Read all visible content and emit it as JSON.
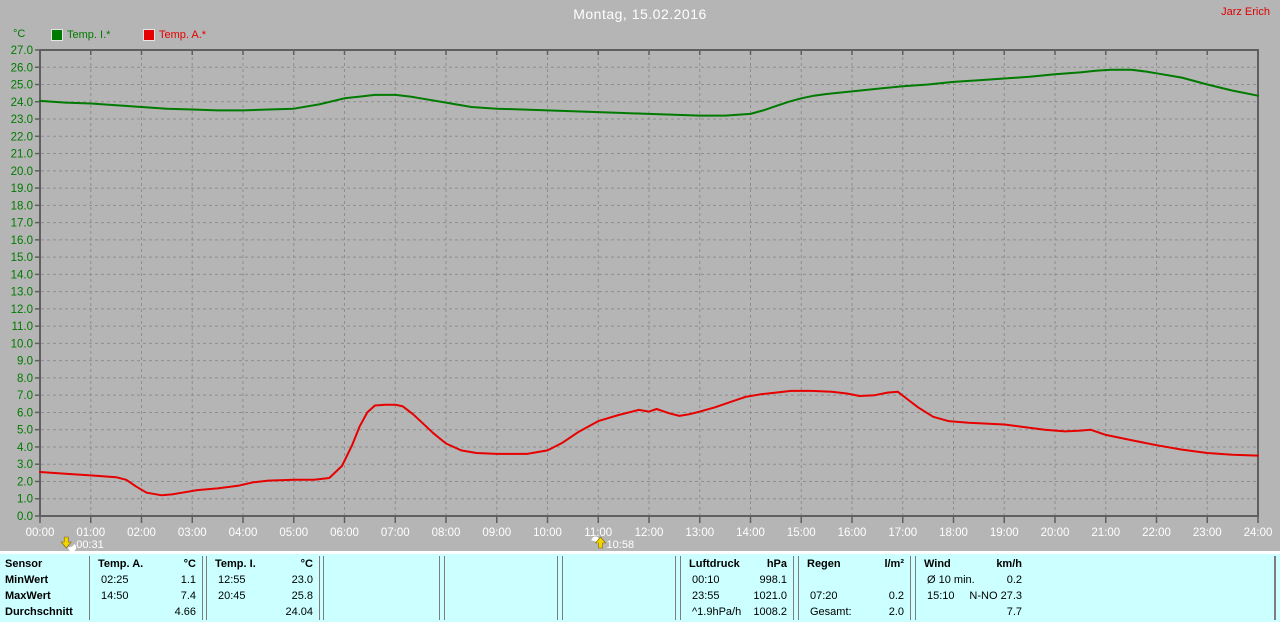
{
  "header": {
    "title": "Montag, 15.02.2016",
    "user": "Jarz Erich"
  },
  "legend": {
    "axis_unit": "°C",
    "items": [
      {
        "label": "Temp. I.*",
        "color": "#007a00"
      },
      {
        "label": "Temp. A.*",
        "color": "#e60000"
      }
    ]
  },
  "colors": {
    "background": "#b5b5b5",
    "grid": "#8e8e8e",
    "frame": "#5f5f5f",
    "y_axis_text": "#007a00",
    "x_axis_text": "#ffffff",
    "title_text": "#ffffff",
    "author_text": "#dd0000",
    "table_background": "#ccffff",
    "table_line": "#7d7d7d"
  },
  "chart_data": {
    "type": "line",
    "title": "Montag, 15.02.2016",
    "ylabel": "°C",
    "grid": true,
    "y_axis": {
      "min": 0.0,
      "max": 27.0,
      "step": 1.0
    },
    "x_axis": {
      "min_hour": 0,
      "max_hour": 24,
      "step_hours": 1
    },
    "series": [
      {
        "name": "Temp. I.*",
        "color": "#007a00",
        "points": [
          [
            0,
            24.05
          ],
          [
            0.5,
            23.95
          ],
          [
            1.0,
            23.9
          ],
          [
            1.5,
            23.8
          ],
          [
            2.0,
            23.7
          ],
          [
            2.5,
            23.6
          ],
          [
            3.0,
            23.55
          ],
          [
            3.5,
            23.5
          ],
          [
            4.0,
            23.5
          ],
          [
            4.5,
            23.55
          ],
          [
            5.0,
            23.6
          ],
          [
            5.5,
            23.85
          ],
          [
            6.0,
            24.2
          ],
          [
            6.3,
            24.3
          ],
          [
            6.6,
            24.4
          ],
          [
            7.0,
            24.4
          ],
          [
            7.3,
            24.3
          ],
          [
            7.6,
            24.15
          ],
          [
            8.0,
            23.95
          ],
          [
            8.5,
            23.7
          ],
          [
            9.0,
            23.6
          ],
          [
            9.5,
            23.55
          ],
          [
            10.0,
            23.5
          ],
          [
            10.5,
            23.45
          ],
          [
            11.0,
            23.4
          ],
          [
            11.5,
            23.35
          ],
          [
            12.0,
            23.3
          ],
          [
            12.5,
            23.25
          ],
          [
            13.0,
            23.2
          ],
          [
            13.5,
            23.2
          ],
          [
            14.0,
            23.3
          ],
          [
            14.25,
            23.5
          ],
          [
            14.5,
            23.75
          ],
          [
            14.75,
            24.0
          ],
          [
            15.0,
            24.2
          ],
          [
            15.25,
            24.35
          ],
          [
            15.5,
            24.45
          ],
          [
            16.0,
            24.6
          ],
          [
            16.5,
            24.75
          ],
          [
            17.0,
            24.9
          ],
          [
            17.5,
            25.0
          ],
          [
            18.0,
            25.15
          ],
          [
            18.5,
            25.25
          ],
          [
            19.0,
            25.35
          ],
          [
            19.5,
            25.45
          ],
          [
            20.0,
            25.6
          ],
          [
            20.5,
            25.7
          ],
          [
            20.8,
            25.8
          ],
          [
            21.1,
            25.85
          ],
          [
            21.5,
            25.85
          ],
          [
            21.8,
            25.75
          ],
          [
            22.0,
            25.65
          ],
          [
            22.5,
            25.4
          ],
          [
            23.0,
            25.0
          ],
          [
            23.5,
            24.65
          ],
          [
            24.0,
            24.35
          ]
        ]
      },
      {
        "name": "Temp. A.*",
        "color": "#e60000",
        "points": [
          [
            0,
            2.55
          ],
          [
            0.5,
            2.45
          ],
          [
            1.0,
            2.35
          ],
          [
            1.5,
            2.25
          ],
          [
            1.7,
            2.1
          ],
          [
            1.9,
            1.7
          ],
          [
            2.1,
            1.35
          ],
          [
            2.4,
            1.2
          ],
          [
            2.6,
            1.25
          ],
          [
            2.8,
            1.35
          ],
          [
            3.1,
            1.5
          ],
          [
            3.5,
            1.6
          ],
          [
            3.9,
            1.75
          ],
          [
            4.2,
            1.95
          ],
          [
            4.5,
            2.05
          ],
          [
            5.0,
            2.1
          ],
          [
            5.4,
            2.1
          ],
          [
            5.7,
            2.2
          ],
          [
            5.95,
            2.9
          ],
          [
            6.15,
            4.1
          ],
          [
            6.3,
            5.2
          ],
          [
            6.45,
            6.0
          ],
          [
            6.6,
            6.4
          ],
          [
            6.8,
            6.45
          ],
          [
            7.0,
            6.45
          ],
          [
            7.15,
            6.35
          ],
          [
            7.35,
            5.9
          ],
          [
            7.55,
            5.35
          ],
          [
            7.75,
            4.8
          ],
          [
            8.0,
            4.2
          ],
          [
            8.3,
            3.8
          ],
          [
            8.6,
            3.65
          ],
          [
            9.0,
            3.6
          ],
          [
            9.6,
            3.6
          ],
          [
            10.0,
            3.8
          ],
          [
            10.3,
            4.25
          ],
          [
            10.6,
            4.85
          ],
          [
            11.0,
            5.5
          ],
          [
            11.4,
            5.85
          ],
          [
            11.8,
            6.15
          ],
          [
            12.0,
            6.05
          ],
          [
            12.15,
            6.2
          ],
          [
            12.4,
            5.95
          ],
          [
            12.6,
            5.8
          ],
          [
            12.8,
            5.9
          ],
          [
            13.0,
            6.05
          ],
          [
            13.3,
            6.3
          ],
          [
            13.6,
            6.6
          ],
          [
            13.9,
            6.9
          ],
          [
            14.2,
            7.05
          ],
          [
            14.5,
            7.15
          ],
          [
            14.8,
            7.25
          ],
          [
            15.2,
            7.25
          ],
          [
            15.6,
            7.2
          ],
          [
            15.9,
            7.1
          ],
          [
            16.15,
            6.95
          ],
          [
            16.45,
            7.0
          ],
          [
            16.7,
            7.15
          ],
          [
            16.9,
            7.2
          ],
          [
            17.1,
            6.75
          ],
          [
            17.3,
            6.3
          ],
          [
            17.6,
            5.75
          ],
          [
            17.9,
            5.5
          ],
          [
            18.3,
            5.4
          ],
          [
            18.7,
            5.35
          ],
          [
            19.0,
            5.3
          ],
          [
            19.4,
            5.15
          ],
          [
            19.8,
            5.0
          ],
          [
            20.2,
            4.9
          ],
          [
            20.5,
            4.95
          ],
          [
            20.7,
            5.0
          ],
          [
            21.0,
            4.7
          ],
          [
            21.5,
            4.4
          ],
          [
            22.0,
            4.1
          ],
          [
            22.5,
            3.85
          ],
          [
            23.0,
            3.65
          ],
          [
            23.5,
            3.55
          ],
          [
            24.0,
            3.5
          ]
        ]
      }
    ],
    "markers": [
      {
        "time": "00:31",
        "icon": "moonset"
      },
      {
        "time": "10:58",
        "icon": "moonrise"
      }
    ]
  },
  "table": {
    "row_labels": [
      "Sensor",
      "MinWert",
      "MaxWert",
      "Durchschnitt"
    ],
    "columns": [
      {
        "name": "Temp. A.",
        "unit": "°C",
        "rows": [
          {
            "t": "02:25",
            "v": "1.1"
          },
          {
            "t": "14:50",
            "v": "7.4"
          },
          {
            "t": "",
            "v": "4.66"
          }
        ]
      },
      {
        "name": "Temp. I.",
        "unit": "°C",
        "rows": [
          {
            "t": "12:55",
            "v": "23.0"
          },
          {
            "t": "20:45",
            "v": "25.8"
          },
          {
            "t": "",
            "v": "24.04"
          }
        ]
      },
      {
        "name": "",
        "unit": "",
        "rows": [
          {
            "t": "",
            "v": ""
          },
          {
            "t": "",
            "v": ""
          },
          {
            "t": "",
            "v": ""
          }
        ]
      },
      {
        "name": "",
        "unit": "",
        "rows": [
          {
            "t": "",
            "v": ""
          },
          {
            "t": "",
            "v": ""
          },
          {
            "t": "",
            "v": ""
          }
        ]
      },
      {
        "name": "",
        "unit": "",
        "rows": [
          {
            "t": "",
            "v": ""
          },
          {
            "t": "",
            "v": ""
          },
          {
            "t": "",
            "v": ""
          }
        ]
      },
      {
        "name": "Luftdruck",
        "unit": "hPa",
        "rows": [
          {
            "t": "00:10",
            "v": "998.1"
          },
          {
            "t": "23:55",
            "v": "1021.0"
          },
          {
            "t": "^1.9hPa/h",
            "v": "1008.2"
          }
        ]
      },
      {
        "name": "Regen",
        "unit": "l/m²",
        "rows": [
          {
            "t": "",
            "v": ""
          },
          {
            "t": "07:20",
            "v": "0.2"
          },
          {
            "t": "Gesamt:",
            "v": "2.0"
          }
        ]
      },
      {
        "name": "Wind",
        "unit": "km/h",
        "rows": [
          {
            "t": "Ø 10 min.",
            "v": "0.2"
          },
          {
            "t": "15:10",
            "v": "N-NO 27.3"
          },
          {
            "t": "",
            "v": "7.7"
          }
        ]
      }
    ]
  }
}
